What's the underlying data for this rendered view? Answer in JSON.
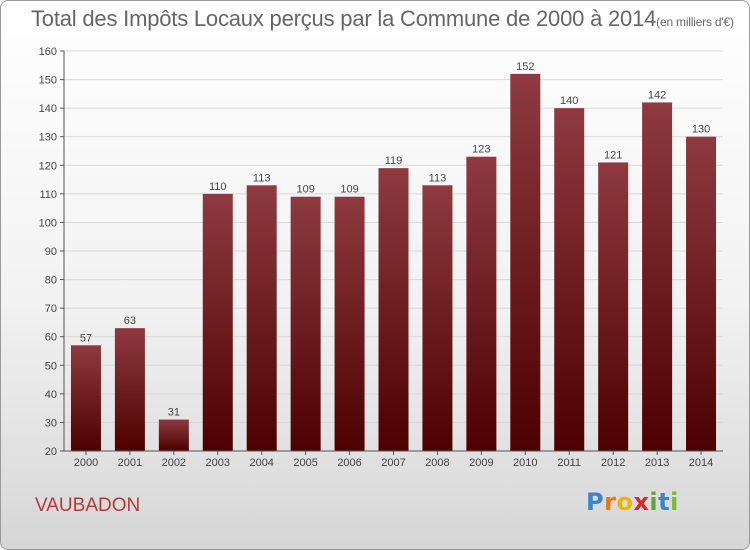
{
  "page": {
    "title": "Total des Impôts Locaux perçus par la Commune de 2000 à 2014",
    "subtitle": "(en milliers d'€)",
    "commune": "VAUBADON",
    "logo": {
      "text": "Proxiti",
      "letters": [
        "P",
        "r",
        "o",
        "x",
        "i",
        "t",
        "i"
      ],
      "colors": [
        "#3a86c8",
        "#e8741e",
        "#f0b400",
        "#d12d2d",
        "#5aa83a",
        "#3a86c8",
        "#7dbb2e"
      ]
    }
  },
  "colors": {
    "bar_top": "#8e3a40",
    "bar_bottom": "#4c0000",
    "grid": "#d9d9d9",
    "axis": "#555555",
    "text": "#444444"
  },
  "chart_data": {
    "type": "bar",
    "title": "Total des Impôts Locaux perçus par la Commune de 2000 à 2014",
    "ylabel": "en milliers d'€",
    "xlabel": "",
    "categories": [
      "2000",
      "2001",
      "2002",
      "2003",
      "2004",
      "2005",
      "2006",
      "2007",
      "2008",
      "2009",
      "2010",
      "2011",
      "2012",
      "2013",
      "2014"
    ],
    "values": [
      57,
      63,
      31,
      110,
      113,
      109,
      109,
      119,
      113,
      123,
      152,
      140,
      121,
      142,
      130
    ],
    "ylim": [
      20,
      160
    ],
    "yticks": [
      20,
      30,
      40,
      50,
      60,
      70,
      80,
      90,
      100,
      110,
      120,
      130,
      140,
      150,
      160
    ],
    "grid": true
  }
}
